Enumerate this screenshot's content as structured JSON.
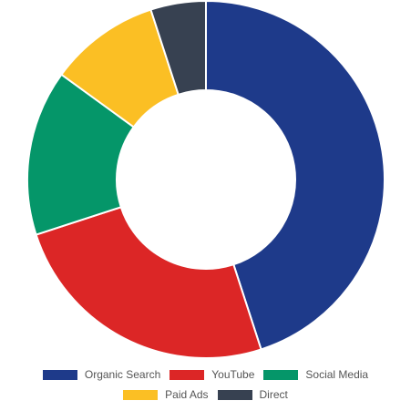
{
  "chart_data": {
    "type": "pie",
    "style": "doughnut",
    "categories": [
      "Organic Search",
      "YouTube",
      "Social Media",
      "Paid Ads",
      "Direct"
    ],
    "values": [
      45,
      25,
      15,
      10,
      5
    ],
    "colors": [
      "#1e3a8a",
      "#dc2626",
      "#059669",
      "#fbbf24",
      "#374151"
    ],
    "legend_position": "bottom",
    "start_angle": "top, clockwise"
  }
}
